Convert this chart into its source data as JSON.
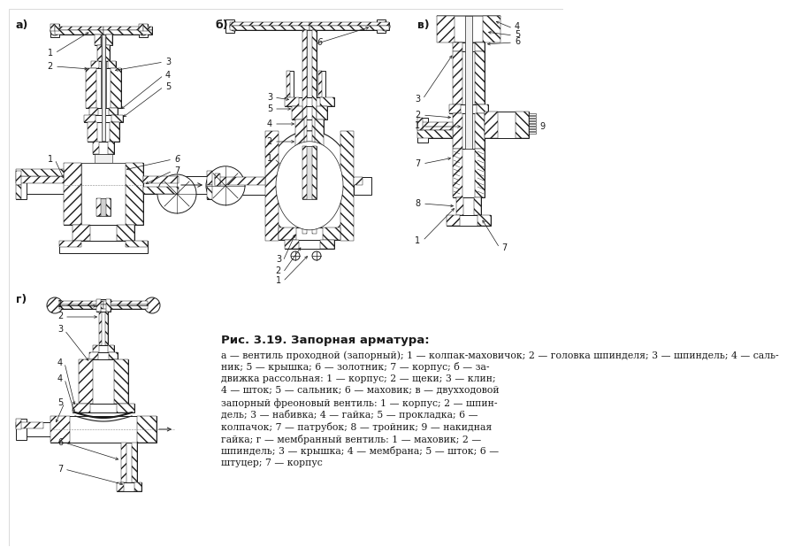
{
  "title": "Рис. 3.19. Запорная арматура:",
  "caption_lines": [
    "а — вентиль проходной (запорный); 1 — колпак-маховичок; 2 — головка шпинделя; 3 — шпиндель; 4 — саль-",
    "ник; 5 — крышка; 6 — золотник; 7 — корпус; б — за-",
    "движка рассольная: 1 — корпус; 2 — щеки; 3 — клин;",
    "4 — шток; 5 — сальник; 6 — маховик; в — двухходовой",
    "запорный фреоновый вентиль: 1 — корпус; 2 — шпин-",
    "дель; 3 — набивка; 4 — гайка; 5 — прокладка; 6 —",
    "колпачок; 7 — патрубок; 8 — тройник; 9 — накидная",
    "гайка; г — мембранный вентиль: 1 — маховик; 2 —",
    "шпиндель; 3 — крышка; 4 — мембрана; 5 — шток; 6 —",
    "штуцер; 7 — корпус"
  ],
  "bg_color": "#ffffff",
  "drawing_color": "#1a1a1a",
  "label_a": "а)",
  "label_b": "б)",
  "label_v": "в)",
  "label_g": "г)",
  "title_fontsize": 9.5,
  "caption_fontsize": 7.8,
  "label_fontsize": 9
}
